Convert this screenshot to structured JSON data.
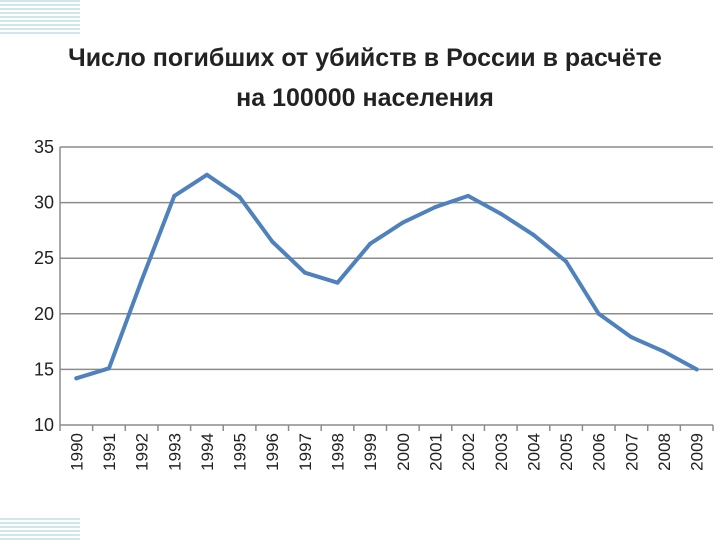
{
  "chart_data": {
    "type": "line",
    "title": "Число погибших от убийств в России в расчёте на 100000 населения",
    "xlabel": "",
    "ylabel": "",
    "categories": [
      "1990",
      "1991",
      "1992",
      "1993",
      "1994",
      "1995",
      "1996",
      "1997",
      "1998",
      "1999",
      "2000",
      "2001",
      "2002",
      "2003",
      "2004",
      "2005",
      "2006",
      "2007",
      "2008",
      "2009"
    ],
    "series": [
      {
        "values": [
          14.2,
          15.1,
          23.0,
          30.6,
          32.5,
          30.5,
          26.5,
          23.7,
          22.8,
          26.3,
          28.2,
          29.6,
          30.6,
          29.0,
          27.1,
          24.7,
          20.0,
          17.9,
          16.6,
          15.0
        ]
      }
    ],
    "ylim": [
      10,
      35
    ],
    "yticks": [
      10,
      15,
      20,
      25,
      30,
      35
    ],
    "grid": true,
    "line_color": "#4f81bd"
  }
}
